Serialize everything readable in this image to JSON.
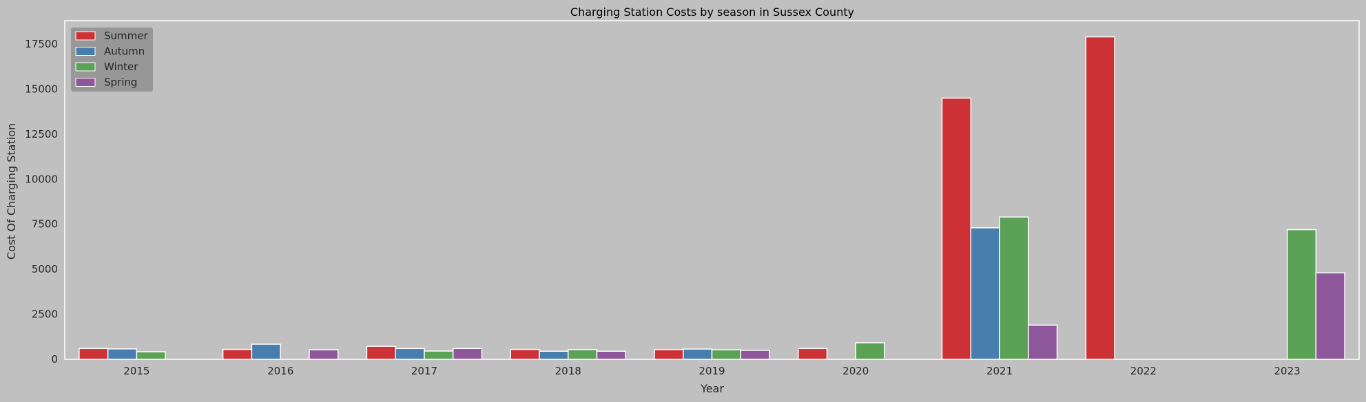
{
  "chart_data": {
    "type": "bar",
    "title": "Charging Station Costs by season in Sussex County",
    "xlabel": "Year",
    "ylabel": "Cost Of Charging Station",
    "categories": [
      "2015",
      "2016",
      "2017",
      "2018",
      "2019",
      "2020",
      "2021",
      "2022",
      "2023"
    ],
    "ylim": [
      0,
      18800
    ],
    "yticks": [
      0,
      2500,
      5000,
      7500,
      10000,
      12500,
      15000,
      17500
    ],
    "grid": false,
    "legend_position": "top-left",
    "series": [
      {
        "name": "Summer",
        "color": "#cc3135",
        "values": [
          600,
          550,
          720,
          550,
          540,
          600,
          14500,
          17900,
          null
        ]
      },
      {
        "name": "Autumn",
        "color": "#477eae",
        "values": [
          580,
          840,
          600,
          450,
          570,
          null,
          7300,
          null,
          null
        ]
      },
      {
        "name": "Winter",
        "color": "#5ba257",
        "values": [
          420,
          null,
          460,
          540,
          530,
          920,
          7900,
          null,
          7200
        ]
      },
      {
        "name": "Spring",
        "color": "#8f579b",
        "values": [
          null,
          530,
          600,
          450,
          500,
          null,
          1900,
          null,
          4800
        ]
      }
    ]
  }
}
